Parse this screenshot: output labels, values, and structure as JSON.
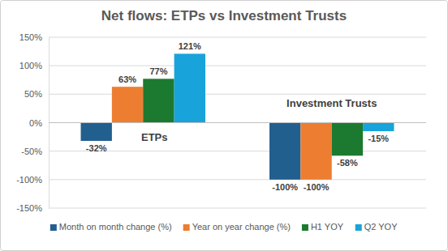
{
  "chart_data": {
    "type": "bar",
    "title": "Net flows: ETPs vs Investment Trusts",
    "categories": [
      "ETPs",
      "Investment Trusts"
    ],
    "series": [
      {
        "name": "Month on month change (%)",
        "color": "#215F8F",
        "values": [
          -32,
          -100
        ],
        "value_labels": [
          "-32%",
          "-100%"
        ]
      },
      {
        "name": "Year on year change (%)",
        "color": "#ED7D31",
        "values": [
          63,
          -100
        ],
        "value_labels": [
          "63%",
          "-100%"
        ]
      },
      {
        "name": "H1 YOY",
        "color": "#1B7A30",
        "values": [
          77,
          -58
        ],
        "value_labels": [
          "77%",
          "-58%"
        ]
      },
      {
        "name": "Q2 YOY",
        "color": "#18A3DB",
        "values": [
          121,
          -15
        ],
        "value_labels": [
          "121%",
          "-15%"
        ]
      }
    ],
    "ylim": [
      -150,
      150
    ],
    "yticks": [
      {
        "value": -150,
        "label": "-150%"
      },
      {
        "value": -100,
        "label": "-100%"
      },
      {
        "value": -50,
        "label": "-50%"
      },
      {
        "value": 0,
        "label": "0%"
      },
      {
        "value": 50,
        "label": "50%"
      },
      {
        "value": 100,
        "label": "100%"
      },
      {
        "value": 150,
        "label": "150%"
      }
    ],
    "grid": true,
    "legend": "bottom",
    "data_labels": true,
    "tick_labels": "y"
  }
}
